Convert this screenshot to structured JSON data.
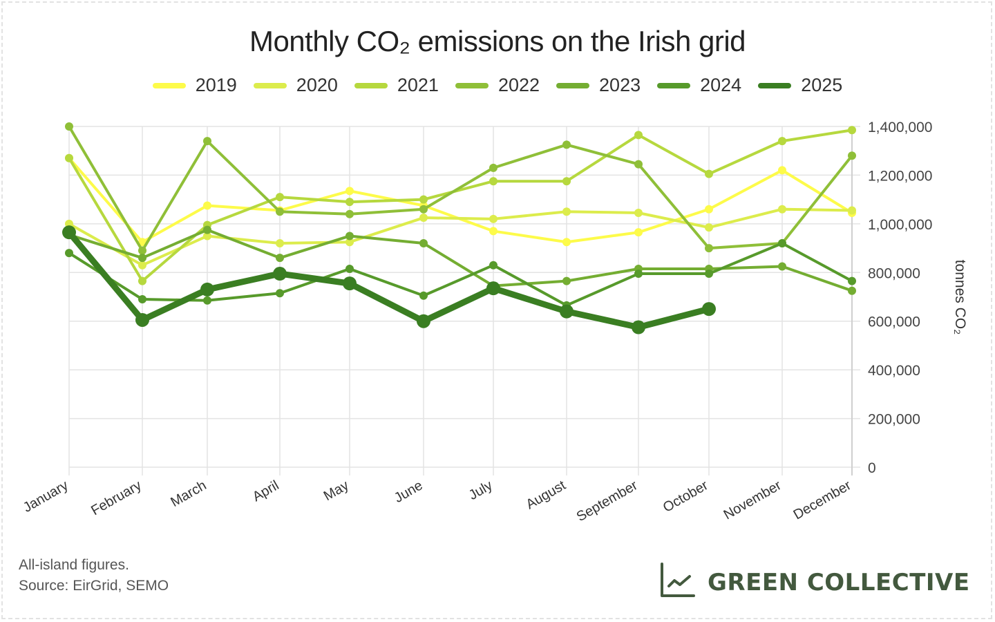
{
  "chart_data": {
    "type": "line",
    "title": "Monthly CO₂ emissions on the Irish grid",
    "xlabel": "",
    "ylabel": "tonnes CO₂",
    "ylim": [
      0,
      1400000
    ],
    "y_ticks": [
      0,
      200000,
      400000,
      600000,
      800000,
      1000000,
      1200000,
      1400000
    ],
    "y_tick_labels": [
      "0",
      "200,000",
      "400,000",
      "600,000",
      "800,000",
      "1,000,000",
      "1,200,000",
      "1,400,000"
    ],
    "y_axis_side": "right",
    "grid": true,
    "legend_position": "top-center",
    "categories": [
      "January",
      "February",
      "March",
      "April",
      "May",
      "June",
      "July",
      "August",
      "September",
      "October",
      "November",
      "December"
    ],
    "series": [
      {
        "name": "2019",
        "color": "#fdfb4a",
        "values": [
          1270000,
          925000,
          1075000,
          1055000,
          1135000,
          1075000,
          970000,
          925000,
          965000,
          1060000,
          1220000,
          1045000
        ]
      },
      {
        "name": "2020",
        "color": "#dcec4c",
        "values": [
          1000000,
          830000,
          950000,
          920000,
          925000,
          1025000,
          1020000,
          1050000,
          1045000,
          985000,
          1060000,
          1055000
        ]
      },
      {
        "name": "2021",
        "color": "#b6d83e",
        "values": [
          1270000,
          765000,
          995000,
          1110000,
          1090000,
          1100000,
          1175000,
          1175000,
          1365000,
          1205000,
          1340000,
          1385000
        ]
      },
      {
        "name": "2022",
        "color": "#8fbf38",
        "values": [
          1400000,
          890000,
          1340000,
          1050000,
          1040000,
          1060000,
          1230000,
          1325000,
          1245000,
          900000,
          920000,
          1280000
        ]
      },
      {
        "name": "2023",
        "color": "#74ad32",
        "values": [
          955000,
          860000,
          975000,
          860000,
          950000,
          920000,
          745000,
          765000,
          815000,
          815000,
          825000,
          725000
        ]
      },
      {
        "name": "2024",
        "color": "#579a2b",
        "values": [
          880000,
          690000,
          685000,
          715000,
          815000,
          705000,
          830000,
          665000,
          795000,
          795000,
          920000,
          765000
        ]
      },
      {
        "name": "2025",
        "color": "#3a7e22",
        "values": [
          965000,
          605000,
          730000,
          795000,
          755000,
          600000,
          735000,
          640000,
          575000,
          650000,
          null,
          null
        ]
      }
    ]
  },
  "footnote": {
    "line1": "All-island figures.",
    "line2": "Source: EirGrid, SEMO"
  },
  "brand": {
    "name": "GREEN COLLECTIVE",
    "icon": "line-chart-icon",
    "color": "#43593e"
  }
}
